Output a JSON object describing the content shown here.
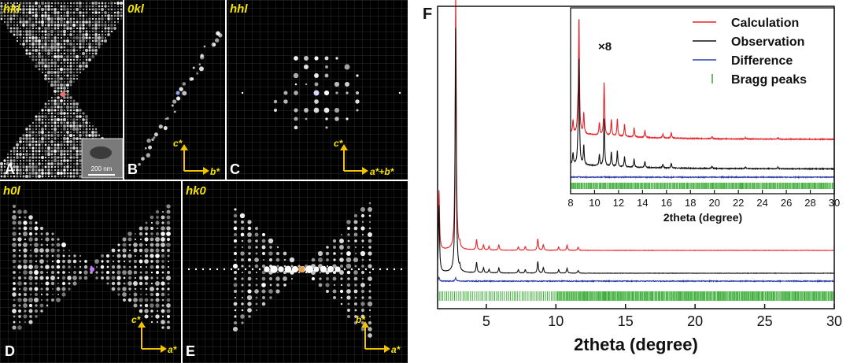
{
  "panels": {
    "A": {
      "letter": "A",
      "title": "hkl",
      "scale_bar": "200 nm"
    },
    "B": {
      "letter": "B",
      "title": "0kl",
      "axis_v": "c*",
      "axis_h": "b*"
    },
    "C": {
      "letter": "C",
      "title": "hhl",
      "axis_v": "c*",
      "axis_h": "a*+b*"
    },
    "D": {
      "letter": "D",
      "title": "h0l",
      "axis_v": "c*",
      "axis_h": "a*"
    },
    "E": {
      "letter": "E",
      "title": "hk0",
      "axis_v": "b*",
      "axis_h": "a*"
    },
    "F": {
      "letter": "F"
    }
  },
  "colors": {
    "calculation": "#e8222a",
    "observation": "#111111",
    "difference": "#2c3fa6",
    "bragg": "#3fae3a",
    "panel_label": "#f5e400",
    "axis_arrow": "#f3c300"
  },
  "chart_data": [
    {
      "type": "line",
      "panel": "F",
      "xlabel": "2theta (degree)",
      "ylabel": "",
      "xlim": [
        1.5,
        30
      ],
      "x_ticks": [
        5,
        10,
        15,
        20,
        25,
        30
      ],
      "y_ticks_visible": false,
      "legend_position": "top-right",
      "series": [
        {
          "name": "Calculation",
          "color": "#e8222a",
          "offset": 2.0,
          "peaks": [
            [
              1.6,
              9.0
            ],
            [
              2.8,
              40.0
            ],
            [
              3.1,
              0.7
            ],
            [
              4.3,
              1.6
            ],
            [
              4.8,
              0.8
            ],
            [
              5.2,
              0.6
            ],
            [
              5.9,
              0.8
            ],
            [
              7.3,
              0.5
            ],
            [
              7.8,
              0.6
            ],
            [
              8.7,
              1.8
            ],
            [
              9.1,
              0.9
            ],
            [
              10.2,
              0.5
            ],
            [
              10.8,
              0.8
            ],
            [
              11.6,
              0.5
            ]
          ]
        },
        {
          "name": "Observation",
          "color": "#111111",
          "offset": 0.0,
          "peaks": [
            [
              1.6,
              9.5
            ],
            [
              2.8,
              35.0
            ],
            [
              3.1,
              0.6
            ],
            [
              4.3,
              1.5
            ],
            [
              4.8,
              0.7
            ],
            [
              5.2,
              0.5
            ],
            [
              5.9,
              0.7
            ],
            [
              7.3,
              0.5
            ],
            [
              7.8,
              0.5
            ],
            [
              8.7,
              1.7
            ],
            [
              9.1,
              0.8
            ],
            [
              10.2,
              0.5
            ],
            [
              10.8,
              0.7
            ],
            [
              11.6,
              0.4
            ]
          ]
        },
        {
          "name": "Difference",
          "color": "#2c3fa6",
          "offset": -1.6,
          "peaks": [
            [
              1.6,
              0.7
            ],
            [
              2.8,
              0.6
            ]
          ]
        },
        {
          "name": "Bragg peaks",
          "color": "#3fae3a",
          "kind": "ticks",
          "start": 1.5,
          "end": 30
        }
      ],
      "inset": {
        "label": "×8",
        "xlabel": "2theta (degree)",
        "xlim": [
          8,
          30
        ],
        "x_ticks": [
          8,
          10,
          12,
          14,
          16,
          18,
          20,
          22,
          24,
          26,
          28,
          30
        ],
        "calc_peaks": [
          [
            8.2,
            3.0
          ],
          [
            8.6,
            3.5
          ],
          [
            8.7,
            28.0
          ],
          [
            9.1,
            5.0
          ],
          [
            10.4,
            3.0
          ],
          [
            10.8,
            13.0
          ],
          [
            11.4,
            4.0
          ],
          [
            11.9,
            4.2
          ],
          [
            12.5,
            3.0
          ],
          [
            13.3,
            2.2
          ],
          [
            14.2,
            1.6
          ],
          [
            15.7,
            1.0
          ],
          [
            16.4,
            1.3
          ],
          [
            19.8,
            0.5
          ],
          [
            22.6,
            0.4
          ],
          [
            25.3,
            0.4
          ]
        ],
        "obs_peaks": [
          [
            8.2,
            2.8
          ],
          [
            8.6,
            3.4
          ],
          [
            8.7,
            27.0
          ],
          [
            9.1,
            4.8
          ],
          [
            10.4,
            2.8
          ],
          [
            10.8,
            12.0
          ],
          [
            11.4,
            3.6
          ],
          [
            11.9,
            4.0
          ],
          [
            12.5,
            2.6
          ],
          [
            13.3,
            2.0
          ],
          [
            14.2,
            1.5
          ],
          [
            15.7,
            0.9
          ],
          [
            16.4,
            1.2
          ],
          [
            19.8,
            0.5
          ],
          [
            22.6,
            0.4
          ],
          [
            25.3,
            0.4
          ]
        ]
      }
    }
  ]
}
